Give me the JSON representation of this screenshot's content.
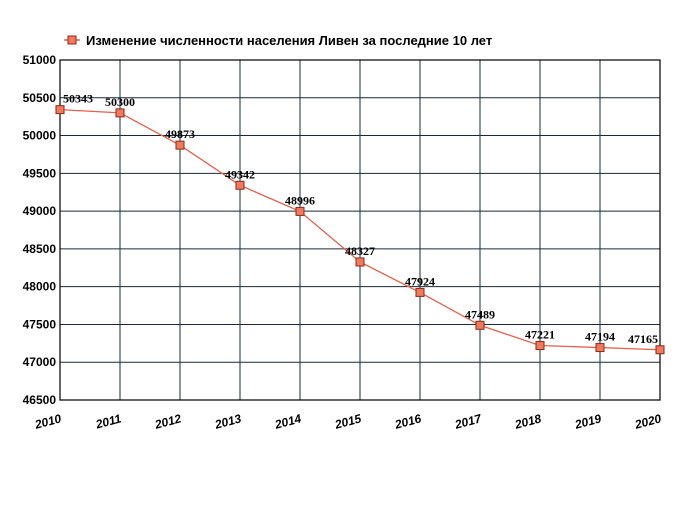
{
  "chart_data": {
    "type": "line",
    "legend": "Изменение численности населения Ливен за последние 10 лет",
    "legend_position": "top-left",
    "x": [
      "2010",
      "2011",
      "2012",
      "2013",
      "2014",
      "2015",
      "2016",
      "2017",
      "2018",
      "2019",
      "2020"
    ],
    "values": [
      50343,
      50300,
      49873,
      49342,
      48996,
      48327,
      47924,
      47489,
      47221,
      47194,
      47165
    ],
    "data_labels": [
      "50343",
      "50300",
      "49873",
      "49342",
      "48996",
      "48327",
      "47924",
      "47489",
      "47221",
      "47194",
      "47165"
    ],
    "yticks": [
      "46500",
      "47000",
      "47500",
      "48000",
      "48500",
      "49000",
      "49500",
      "50000",
      "50500",
      "51000"
    ],
    "ylim": [
      46500,
      51000
    ],
    "grid": true,
    "colors": {
      "line": "#e8604c",
      "marker_fill": "#f07a5e",
      "marker_stroke": "#8a2a1a",
      "grid": "#1a2a3a"
    }
  }
}
